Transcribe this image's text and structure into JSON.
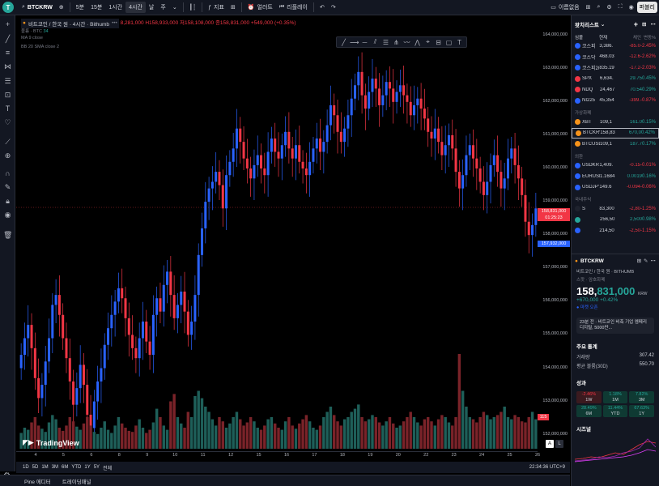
{
  "topbar": {
    "symbol": "BTCKRW",
    "intervals": [
      "5분",
      "15분",
      "1시간",
      "4시간",
      "날",
      "주"
    ],
    "active_interval": "4시간",
    "indicators_label": "지표",
    "alert_label": "얼러트",
    "replay_label": "리플레이",
    "publish_label": "퍼블리",
    "name_label": "이름없음"
  },
  "legend": {
    "title": "비트코인 / 한국 원 · 4시간 · Bithumb",
    "ohlc_text": "8,281,000 H158,933,000 저158,108,000 종158,831,000 +549,000 (+0.35%)",
    "volume_label": "볼륨 · BTC",
    "volume_value": "34",
    "ma_label": "MA 9 close",
    "bb_label": "BB 20 SMA close 2"
  },
  "price_axis": {
    "labels": [
      "164,000,000",
      "163,000,000",
      "162,000,000",
      "161,000,000",
      "160,000,000",
      "159,000,000",
      "158,000,000",
      "157,000,000",
      "156,000,000",
      "155,000,000",
      "154,000,000",
      "153,000,000",
      "152,000,000"
    ],
    "last_price": "158,831,000",
    "countdown": "01:25:23",
    "ma_tag": "157,932,000",
    "vol_tag": "115"
  },
  "time_axis": [
    "4",
    "5",
    "6",
    "8",
    "9",
    "10",
    "11",
    "12",
    "15",
    "16",
    "17",
    "18",
    "19",
    "20",
    "22",
    "23",
    "24",
    "25",
    "26"
  ],
  "bottombar": {
    "ranges": [
      "1D",
      "5D",
      "1M",
      "3M",
      "6M",
      "YTD",
      "1Y",
      "5Y",
      "전체"
    ],
    "clock": "22:34:36 UTC+9"
  },
  "footer": {
    "tabs": [
      "Pine 에디터",
      "트레이딩패널"
    ]
  },
  "brand": "TradingView",
  "watchlist": {
    "title": "왓치리스트",
    "columns": [
      "심볼",
      "현재",
      "체인",
      "변동%"
    ],
    "rows": [
      {
        "sym": "코스피",
        "last": "3,386.",
        "chg": "-85.0",
        "pct": "-2.45%",
        "dir": "neg",
        "color": "#2962ff"
      },
      {
        "sym": "코스닥",
        "last": "468.03",
        "chg": "-12.6",
        "pct": "-2.62%",
        "dir": "neg",
        "color": "#2962ff"
      },
      {
        "sym": "코스피200",
        "last": "835.19",
        "chg": "-17.2",
        "pct": "-2.03%",
        "dir": "neg",
        "color": "#2962ff"
      },
      {
        "sym": "SPX",
        "last": "6,634.",
        "chg": "29.75",
        "pct": "0.45%",
        "dir": "pos",
        "color": "#f23645"
      },
      {
        "sym": "NDQ",
        "last": "24,467",
        "chg": "70.54",
        "pct": "0.29%",
        "dir": "pos",
        "color": "#f23645"
      },
      {
        "sym": "NI225",
        "last": "45,354",
        "chg": "-399.",
        "pct": "-0.87%",
        "dir": "neg",
        "color": "#2962ff"
      }
    ],
    "group_crypto": "가상화폐",
    "crypto": [
      {
        "sym": "XBT",
        "last": "109,1",
        "chg": "161.0",
        "pct": "0.15%",
        "dir": "pos",
        "color": "#f7931a"
      },
      {
        "sym": "BTCKRW",
        "last": "158,83",
        "chg": "670,0",
        "pct": "0.42%",
        "dir": "pos",
        "color": "#f7931a"
      },
      {
        "sym": "BTCUSD",
        "last": "109,1",
        "chg": "187.7",
        "pct": "0.17%",
        "dir": "pos",
        "color": "#f7931a"
      }
    ],
    "group_fx": "외환",
    "fx": [
      {
        "sym": "USDKRW",
        "last": "1,409.",
        "chg": "-0.15",
        "pct": "-0.01%",
        "dir": "neg",
        "color": "#2962ff"
      },
      {
        "sym": "EURUSD",
        "last": "1.1684",
        "chg": "0.0019",
        "pct": "0.16%",
        "dir": "pos",
        "color": "#2962ff"
      },
      {
        "sym": "USDJPY",
        "last": "149.6",
        "chg": "-0.094",
        "pct": "-0.06%",
        "dir": "neg",
        "color": "#2962ff"
      }
    ],
    "group_stocks": "국내주식",
    "stocks": [
      {
        "sym": "S",
        "last": "83,300",
        "chg": "-2,80",
        "pct": "-1.25%",
        "dir": "neg",
        "color": "#1e222d"
      },
      {
        "sym": "",
        "last": "256,50",
        "chg": "2,500",
        "pct": "0.98%",
        "dir": "pos",
        "color": "#26a69a"
      },
      {
        "sym": "",
        "last": "214,50",
        "chg": "-2,50",
        "pct": "-1.15%",
        "dir": "neg",
        "color": "#2962ff"
      }
    ]
  },
  "detail": {
    "symbol": "BTCKRW",
    "subtitle": "비트코인 / 한국 원 · BITHUMB",
    "category": "스팟 · 암호화폐",
    "price_head": "158,",
    "price_tail": "831,000",
    "currency": "KRW",
    "change": "+670,000 +0.42%",
    "status": "● 마켓 오픈",
    "news": "23분 전 · 비트코인 비축 기업 엠페리 디지털, 5000만...",
    "stats_title": "주요 통계",
    "stats": [
      {
        "label": "거래량",
        "value": "307.42"
      },
      {
        "label": "평균 볼륨(30D)",
        "value": "550.70"
      }
    ],
    "perf_title": "성과",
    "perf": [
      {
        "val": "-2.46%",
        "per": "1W",
        "dir": "neg"
      },
      {
        "val": "1.18%",
        "per": "1M",
        "dir": "pos"
      },
      {
        "val": "7.82%",
        "per": "3M",
        "dir": "pos"
      },
      {
        "val": "28.49%",
        "per": "6M",
        "dir": "pos"
      },
      {
        "val": "11.44%",
        "per": "YTD",
        "dir": "pos"
      },
      {
        "val": "67.63%",
        "per": "1Y",
        "dir": "pos"
      }
    ],
    "seasonal_title": "시즈널"
  },
  "chart_data": {
    "type": "candlestick",
    "ylim": [
      151700000,
      164600000
    ],
    "last_price": 158831000,
    "categories_note": "4-hour candles, ~3 weeks",
    "close": [
      154.4,
      154.9,
      155.3,
      154.6,
      153.7,
      153.1,
      153.5,
      154.2,
      154.9,
      155.9,
      156.2,
      155.6,
      154.9,
      154.3,
      153.6,
      152.9,
      153.4,
      154.1,
      153.5,
      152.6,
      152.2,
      153.0,
      153.6,
      154.0,
      154.7,
      155.2,
      155.6,
      156.0,
      156.4,
      156.1,
      155.5,
      155.0,
      154.6,
      154.3,
      154.9,
      155.4,
      154.8,
      154.4,
      155.6,
      156.1,
      155.7,
      156.5,
      156.9,
      156.2,
      155.5,
      155.9,
      156.3,
      155.7,
      155.0,
      155.4,
      156.2,
      157.4,
      158.2,
      159.0,
      159.4,
      159.6,
      159.9,
      159.5,
      158.8,
      159.8,
      160.2,
      160.6,
      161.2,
      160.8,
      160.3,
      160.0,
      159.7,
      160.1,
      160.4,
      160.0,
      159.8,
      160.5,
      160.9,
      160.5,
      160.3,
      160.7,
      161.1,
      160.6,
      160.3,
      160.7,
      160.2,
      160.0,
      159.8,
      160.2,
      160.6,
      160.9,
      160.5,
      160.8,
      161.3,
      161.9,
      161.6,
      161.1,
      160.8,
      161.2,
      161.6,
      162.1,
      162.5,
      162.9,
      162.2,
      161.8,
      162.3,
      162.7,
      162.4,
      161.9,
      162.2,
      162.6,
      162.4,
      162.0,
      162.3,
      162.5,
      162.2,
      162.0,
      161.6,
      161.9,
      162.1,
      161.8,
      161.5,
      161.1,
      160.9,
      161.2,
      160.8,
      160.4,
      160.7,
      161.0,
      160.6,
      159.9,
      159.4,
      159.8,
      160.4,
      160.7,
      160.3,
      160.0,
      159.6,
      159.2,
      159.6,
      160.1,
      160.4,
      159.9,
      159.4,
      159.7,
      160.3,
      160.6,
      160.1,
      159.7,
      159.2,
      158.4,
      158.0,
      158.3,
      158.8
    ],
    "volume": [
      0.15,
      0.2,
      0.18,
      0.25,
      0.3,
      0.22,
      0.19,
      0.16,
      0.25,
      0.32,
      0.28,
      0.2,
      0.17,
      0.22,
      0.3,
      0.26,
      0.21,
      0.18,
      0.24,
      0.3,
      0.22,
      0.16,
      0.14,
      0.2,
      0.26,
      0.18,
      0.15,
      0.22,
      0.3,
      0.24,
      0.2,
      0.17,
      0.16,
      0.22,
      0.28,
      0.2,
      0.15,
      0.18,
      0.25,
      0.38,
      0.3,
      0.22,
      0.18,
      0.45,
      0.52,
      0.3,
      0.24,
      0.2,
      0.35,
      0.3,
      0.5,
      0.55,
      0.48,
      0.4,
      0.35,
      0.28,
      0.22,
      0.3,
      0.26,
      0.2,
      0.24,
      0.3,
      0.35,
      0.28,
      0.22,
      0.25,
      0.3,
      0.26,
      0.2,
      0.18,
      0.22,
      0.28,
      0.3,
      0.24,
      0.2,
      0.18,
      0.26,
      0.3,
      0.22,
      0.19,
      0.24,
      0.28,
      0.32,
      0.26,
      0.2,
      0.18,
      0.22,
      0.3,
      0.35,
      0.4,
      0.32,
      0.26,
      0.22,
      0.28,
      0.3,
      0.35,
      0.38,
      0.42,
      0.3,
      0.26,
      0.28,
      0.32,
      0.3,
      0.25,
      0.22,
      0.26,
      0.3,
      0.24,
      0.2,
      0.22,
      0.26,
      0.3,
      0.35,
      0.3,
      0.25,
      0.22,
      0.28,
      0.3,
      0.26,
      0.22,
      0.28,
      0.32,
      0.3,
      0.25,
      0.22,
      0.3,
      0.9,
      0.55,
      0.4,
      0.3,
      0.28,
      0.25,
      0.3,
      0.35,
      0.32,
      0.28,
      0.3,
      0.32,
      0.35,
      0.4,
      0.3,
      0.28,
      0.32,
      0.3,
      0.26,
      0.25,
      0.3,
      0.35,
      0.28
    ]
  }
}
